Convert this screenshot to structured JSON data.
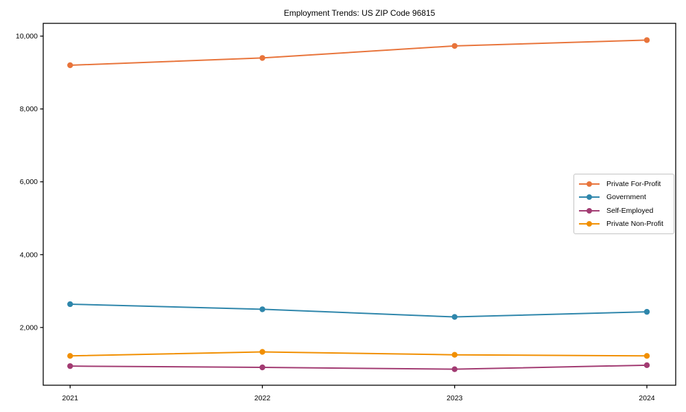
{
  "chart_data": {
    "type": "line",
    "title": "Employment Trends: US ZIP Code 96815",
    "x": [
      2021,
      2022,
      2023,
      2024
    ],
    "x_tick_labels": [
      "2021",
      "2022",
      "2023",
      "2024"
    ],
    "y_ticks": [
      {
        "value": 2000,
        "label": "2,000"
      },
      {
        "value": 4000,
        "label": "4,000"
      },
      {
        "value": 6000,
        "label": "6,000"
      },
      {
        "value": 8000,
        "label": "8,000"
      },
      {
        "value": 10000,
        "label": "10,000"
      }
    ],
    "series": [
      {
        "name": "Private For-Profit",
        "color": "#E8743B",
        "values": [
          9200,
          9400,
          9730,
          9890
        ]
      },
      {
        "name": "Government",
        "color": "#2E86AB",
        "values": [
          2640,
          2500,
          2290,
          2430
        ]
      },
      {
        "name": "Self-Employed",
        "color": "#A23B72",
        "values": [
          940,
          905,
          855,
          965
        ]
      },
      {
        "name": "Private Non-Profit",
        "color": "#F18F01",
        "values": [
          1220,
          1330,
          1250,
          1220
        ]
      }
    ],
    "xlim": [
      2020.86,
      2024.15
    ],
    "ylim": [
      415,
      10350
    ],
    "xlabel": "",
    "ylabel": "",
    "grid": false,
    "legend_position": "center right",
    "axis_color": "#000000",
    "background_color": "#ffffff"
  }
}
